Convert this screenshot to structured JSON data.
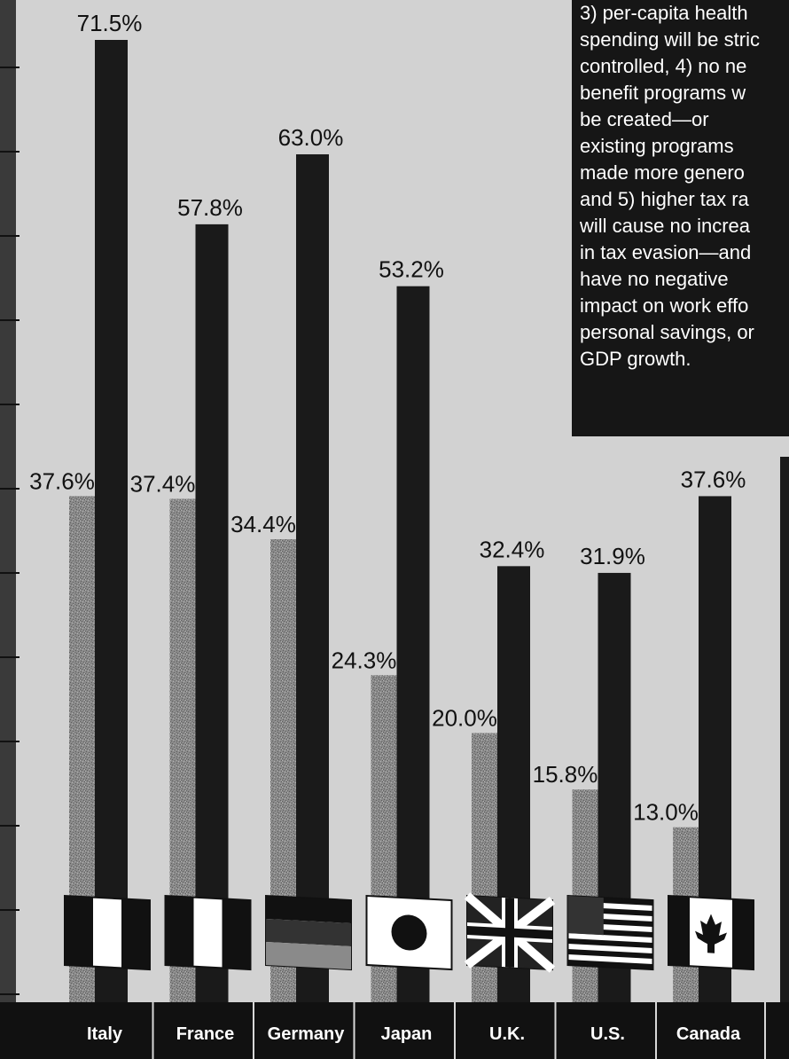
{
  "chart_data": {
    "type": "bar",
    "categories": [
      "Italy",
      "France",
      "Germany",
      "Japan",
      "U.K.",
      "U.S.",
      "Canada"
    ],
    "series": [
      {
        "values": [
          37.6,
          37.4,
          34.4,
          24.3,
          20.0,
          15.8,
          13.0
        ],
        "color": "#8a8a8a"
      },
      {
        "values": [
          71.5,
          57.8,
          63.0,
          53.2,
          32.4,
          31.9,
          37.6
        ],
        "color": "#1a1a1a"
      }
    ],
    "data_labels": [
      [
        "37.6%",
        "37.4%",
        "34.4%",
        "24.3%",
        "20.0%",
        "15.8%",
        "13.0%"
      ],
      [
        "71.5%",
        "57.8%",
        "63.0%",
        "53.2%",
        "32.4%",
        "31.9%",
        "37.6%"
      ]
    ],
    "flag_icons": [
      "italy-flag-icon",
      "france-flag-icon",
      "germany-flag-icon",
      "japan-flag-icon",
      "uk-flag-icon",
      "us-flag-icon",
      "canada-flag-icon"
    ],
    "title": "",
    "xlabel": "",
    "ylabel": "",
    "ylim": [
      0,
      80
    ],
    "grid": false,
    "legend": "none"
  },
  "text_box": {
    "lines": [
      "3) per-capita health",
      "spending will be stric",
      "controlled, 4) no ne",
      "benefit programs w",
      "be created—or",
      "existing programs",
      "made more genero",
      "and 5) higher tax ra",
      "will cause no increa",
      "in tax evasion—and",
      "have no negative",
      "impact on work effo",
      "personal savings, or",
      "GDP growth."
    ]
  },
  "colors": {
    "background": "#d2d2d2",
    "bar_light": "#8a8a8a",
    "bar_dark": "#1a1a1a",
    "category_band": "#111111",
    "text_box": "#161616"
  }
}
